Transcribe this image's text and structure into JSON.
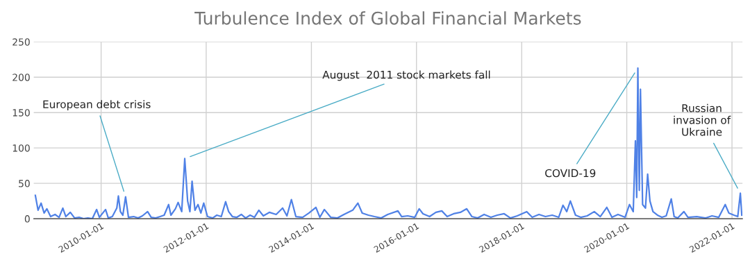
{
  "chart_data": {
    "type": "line",
    "title": "Turbulence Index of Global Financial Markets",
    "x": [
      "2008-10-01",
      "2008-10-20",
      "2008-11-10",
      "2008-12-01",
      "2008-12-20",
      "2009-01-15",
      "2009-02-15",
      "2009-03-15",
      "2009-04-10",
      "2009-05-01",
      "2009-06-01",
      "2009-07-01",
      "2009-08-01",
      "2009-09-01",
      "2009-10-01",
      "2009-11-01",
      "2009-12-01",
      "2009-12-20",
      "2010-02-01",
      "2010-02-20",
      "2010-03-20",
      "2010-04-20",
      "2010-05-01",
      "2010-05-15",
      "2010-06-01",
      "2010-06-20",
      "2010-07-10",
      "2010-08-15",
      "2010-09-15",
      "2010-10-15",
      "2010-11-20",
      "2010-12-15",
      "2011-01-15",
      "2011-02-15",
      "2011-03-15",
      "2011-04-15",
      "2011-05-01",
      "2011-06-01",
      "2011-06-20",
      "2011-07-15",
      "2011-08-05",
      "2011-08-25",
      "2011-09-10",
      "2011-09-25",
      "2011-10-15",
      "2011-11-05",
      "2011-11-25",
      "2011-12-15",
      "2012-01-10",
      "2012-02-15",
      "2012-03-15",
      "2012-04-15",
      "2012-05-15",
      "2012-06-05",
      "2012-07-01",
      "2012-08-01",
      "2012-09-01",
      "2012-10-01",
      "2012-11-01",
      "2012-12-01",
      "2013-01-01",
      "2013-02-01",
      "2013-03-15",
      "2013-05-01",
      "2013-06-15",
      "2013-07-15",
      "2013-08-15",
      "2013-09-15",
      "2013-11-01",
      "2013-12-15",
      "2014-02-01",
      "2014-03-01",
      "2014-04-01",
      "2014-05-15",
      "2014-07-01",
      "2014-08-15",
      "2014-10-15",
      "2014-11-20",
      "2014-12-20",
      "2015-02-01",
      "2015-03-15",
      "2015-05-01",
      "2015-06-15",
      "2015-08-25",
      "2015-09-20",
      "2015-11-01",
      "2015-12-20",
      "2016-01-20",
      "2016-02-15",
      "2016-04-01",
      "2016-05-15",
      "2016-06-25",
      "2016-08-01",
      "2016-09-15",
      "2016-11-01",
      "2016-12-15",
      "2017-01-20",
      "2017-03-01",
      "2017-04-15",
      "2017-06-01",
      "2017-07-15",
      "2017-09-01",
      "2017-10-15",
      "2017-12-01",
      "2018-02-05",
      "2018-03-15",
      "2018-05-01",
      "2018-06-15",
      "2018-08-01",
      "2018-09-15",
      "2018-10-15",
      "2018-11-10",
      "2018-12-05",
      "2019-01-10",
      "2019-02-15",
      "2019-04-01",
      "2019-05-20",
      "2019-07-01",
      "2019-08-15",
      "2019-09-20",
      "2019-11-01",
      "2019-12-20",
      "2020-01-20",
      "2020-02-15",
      "2020-03-01",
      "2020-03-10",
      "2020-03-18",
      "2020-03-28",
      "2020-04-05",
      "2020-04-20",
      "2020-05-10",
      "2020-05-25",
      "2020-06-10",
      "2020-07-01",
      "2020-08-01",
      "2020-09-01",
      "2020-10-01",
      "2020-11-05",
      "2020-11-25",
      "2020-12-20",
      "2021-02-01",
      "2021-03-01",
      "2021-05-01",
      "2021-07-01",
      "2021-08-15",
      "2021-10-01",
      "2021-11-15",
      "2021-12-10",
      "2022-01-15",
      "2022-02-10",
      "2022-02-28",
      "2022-03-10"
    ],
    "series": [
      {
        "color": "#4f81e6",
        "values": [
          33,
          12,
          22,
          8,
          14,
          3,
          6,
          2,
          15,
          3,
          9,
          1,
          2,
          0,
          1,
          0,
          13,
          2,
          13,
          1,
          3,
          15,
          32,
          10,
          5,
          31,
          2,
          3,
          1,
          4,
          10,
          2,
          1,
          3,
          5,
          20,
          5,
          14,
          23,
          10,
          85,
          25,
          10,
          53,
          12,
          20,
          8,
          22,
          3,
          1,
          5,
          3,
          24,
          10,
          3,
          2,
          6,
          1,
          5,
          2,
          12,
          4,
          9,
          6,
          15,
          4,
          27,
          3,
          2,
          8,
          16,
          2,
          13,
          2,
          1,
          6,
          12,
          22,
          8,
          5,
          3,
          1,
          6,
          11,
          3,
          4,
          2,
          14,
          7,
          3,
          9,
          11,
          3,
          7,
          9,
          14,
          3,
          1,
          6,
          2,
          5,
          7,
          1,
          4,
          10,
          2,
          6,
          3,
          5,
          2,
          19,
          10,
          25,
          5,
          2,
          4,
          10,
          3,
          16,
          2,
          6,
          2,
          20,
          10,
          110,
          30,
          213,
          40,
          183,
          20,
          15,
          63,
          25,
          10,
          5,
          2,
          4,
          28,
          3,
          1,
          10,
          2,
          3,
          1,
          4,
          2,
          20,
          8,
          5,
          3,
          36,
          5
        ]
      }
    ],
    "xlim": [
      "2008-09-20",
      "2022-03-15"
    ],
    "xticks": [
      {
        "value": "2010-01-01",
        "label": "2010-01-01"
      },
      {
        "value": "2012-01-01",
        "label": "2012-01-01"
      },
      {
        "value": "2014-01-01",
        "label": "2014-01-01"
      },
      {
        "value": "2016-01-01",
        "label": "2016-01-01"
      },
      {
        "value": "2018-01-01",
        "label": "2018-01-01"
      },
      {
        "value": "2020-01-01",
        "label": "2020-01-01"
      },
      {
        "value": "2022-01-01",
        "label": "2022-01-01"
      }
    ],
    "ylim": [
      0,
      250
    ],
    "yticks": [
      0,
      50,
      100,
      150,
      200,
      250
    ],
    "grid": true,
    "annotations": [
      {
        "text": "European debt crisis",
        "x": "2010-06-20",
        "y": 31
      },
      {
        "text": "August  2011 stock markets fall",
        "x": "2011-08-05",
        "y": 85
      },
      {
        "text": "COVID-19",
        "x": "2020-03-18",
        "y": 213
      },
      {
        "text": "Russian\ninvasion of\nUkraine",
        "x": "2022-02-28",
        "y": 36
      }
    ]
  }
}
